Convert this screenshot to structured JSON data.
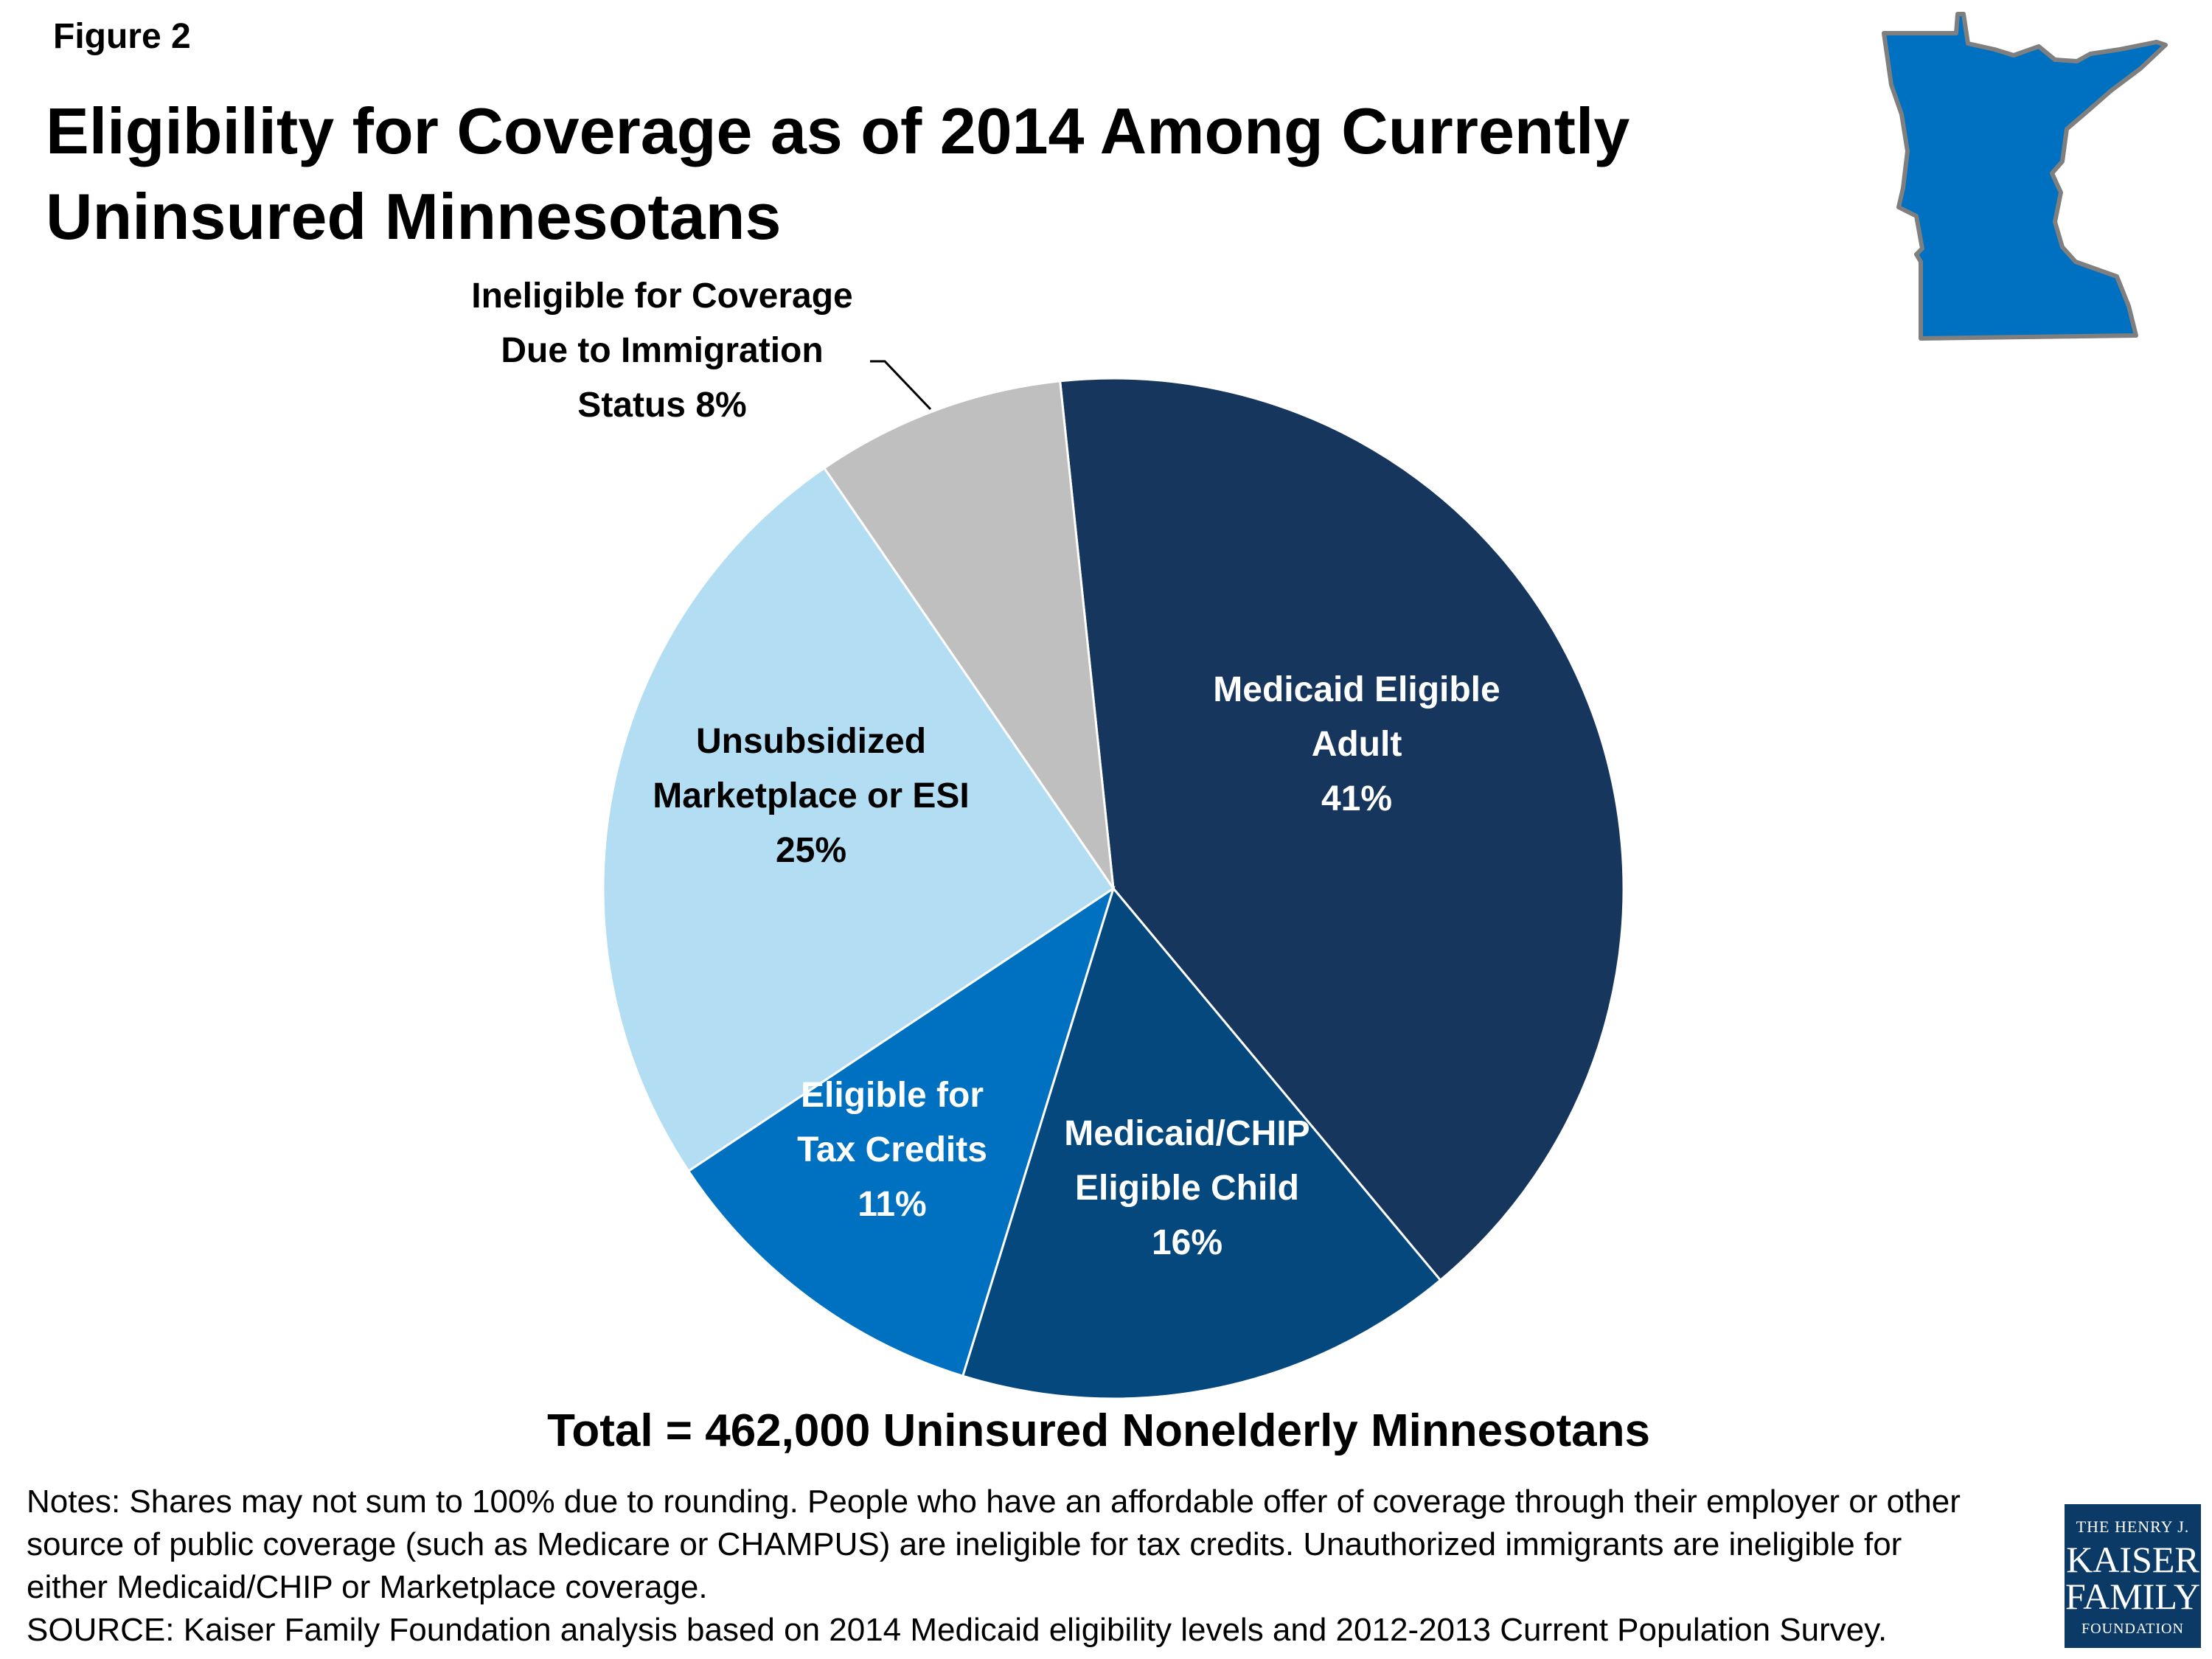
{
  "figure_label": "Figure 2",
  "title_lines": [
    "Eligibility for Coverage as of 2014 Among Currently",
    "Uninsured Minnesotans"
  ],
  "total_text": "Total = 462,000 Uninsured Nonelderly Minnesotans",
  "notes_lines": [
    "Notes: Shares may not sum to 100% due to rounding. People who have an affordable offer of coverage through their employer or other",
    "source of public coverage (such as Medicare or CHAMPUS) are ineligible for tax credits. Unauthorized immigrants are ineligible for",
    "either Medicaid/CHIP or Marketplace coverage.",
    "SOURCE: Kaiser Family Foundation analysis based on 2014 Medicaid eligibility levels and 2012-2013 Current Population Survey."
  ],
  "logo": {
    "line1": "THE HENRY J.",
    "line2": "KAISER",
    "line3": "FAMILY",
    "line4": "FOUNDATION"
  },
  "map_icon": "minnesota-state-icon",
  "chart_data": {
    "type": "pie",
    "title": "Eligibility for Coverage as of 2014 Among Currently Uninsured Minnesotans",
    "unit": "%",
    "slices": [
      {
        "name": "Medicaid Eligible Adult",
        "label_lines": [
          "Medicaid Eligible",
          "Adult",
          "41%"
        ],
        "value": 41,
        "color": "#17365d",
        "label_color": "#ffffff"
      },
      {
        "name": "Medicaid/CHIP Eligible Child",
        "label_lines": [
          "Medicaid/CHIP",
          "Eligible Child",
          "16%"
        ],
        "value": 16,
        "color": "#05487e",
        "label_color": "#ffffff"
      },
      {
        "name": "Eligible for Tax Credits",
        "label_lines": [
          "Eligible for",
          "Tax Credits",
          "11%"
        ],
        "value": 11,
        "color": "#0070c0",
        "label_color": "#ffffff"
      },
      {
        "name": "Unsubsidized Marketplace or ESI",
        "label_lines": [
          "Unsubsidized",
          "Marketplace or ESI",
          "25%"
        ],
        "value": 25,
        "color": "#b3ddf2",
        "label_color": "#000000"
      },
      {
        "name": "Ineligible for Coverage Due to Immigration Status",
        "label_lines": [
          "Ineligible for Coverage",
          "Due to Immigration",
          "Status 8%"
        ],
        "value": 8,
        "color": "#bfbfbf",
        "label_color": "#000000"
      }
    ]
  },
  "colors": {
    "map_fill": "#0070c0",
    "map_stroke": "#7f7f7f",
    "logo_bg": "#0b3a66"
  }
}
